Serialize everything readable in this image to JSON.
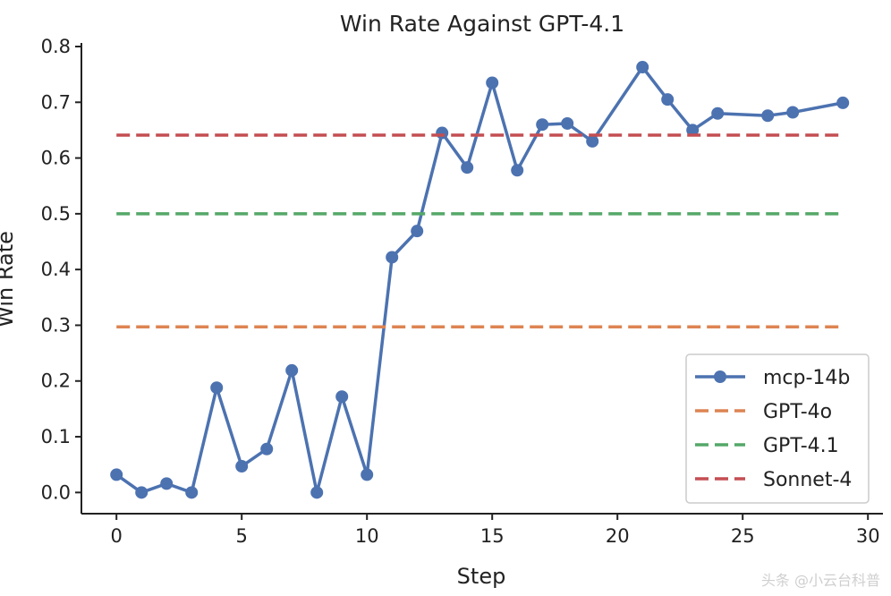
{
  "chart_data": {
    "type": "line",
    "title": "Win Rate Against GPT-4.1",
    "xlabel": "Step",
    "ylabel": "Win Rate",
    "xlim": [
      -1.4,
      30.6
    ],
    "ylim": [
      -0.038,
      0.8
    ],
    "xticks": [
      "0",
      "5",
      "10",
      "15",
      "20",
      "25",
      "30"
    ],
    "yticks": [
      "0.0",
      "0.1",
      "0.2",
      "0.3",
      "0.4",
      "0.5",
      "0.6",
      "0.7",
      "0.8"
    ],
    "grid": false,
    "legend_position": "lower-right",
    "series": [
      {
        "name": "mcp-14b",
        "style": "solid-marker",
        "color": "#4c72b0",
        "x": [
          0,
          1,
          2,
          3,
          4,
          5,
          6,
          7,
          8,
          9,
          10,
          11,
          12,
          13,
          14,
          15,
          16,
          17,
          18,
          19,
          21,
          22,
          23,
          24,
          26,
          27,
          29
        ],
        "y": [
          0.032,
          0.0,
          0.016,
          0.0,
          0.188,
          0.047,
          0.078,
          0.219,
          0.0,
          0.172,
          0.032,
          0.422,
          0.469,
          0.645,
          0.583,
          0.735,
          0.578,
          0.66,
          0.662,
          0.63,
          0.763,
          0.705,
          0.65,
          0.68,
          0.676,
          0.682,
          0.699
        ]
      },
      {
        "name": "GPT-4o",
        "style": "dashed",
        "color": "#dd8452",
        "x": [
          0,
          29
        ],
        "y": [
          0.297,
          0.297
        ]
      },
      {
        "name": "GPT-4.1",
        "style": "dashed",
        "color": "#55a868",
        "x": [
          0,
          29
        ],
        "y": [
          0.5,
          0.5
        ]
      },
      {
        "name": "Sonnet-4",
        "style": "dashed",
        "color": "#c44e52",
        "x": [
          0,
          29
        ],
        "y": [
          0.641,
          0.641
        ]
      }
    ]
  },
  "watermark": "头条 @小云台科普"
}
